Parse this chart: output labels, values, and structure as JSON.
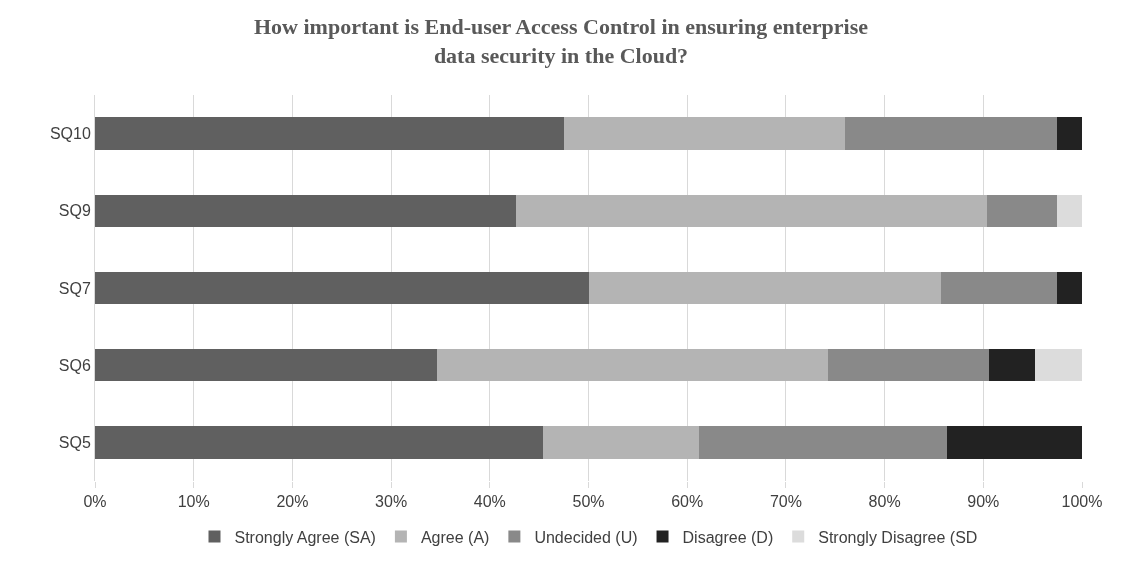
{
  "chart_data": {
    "type": "bar",
    "orientation": "horizontal",
    "stacked": true,
    "title": "How important is End-user Access Control in ensuring enterprise data security in the Cloud?",
    "categories": [
      "SQ10",
      "SQ9",
      "SQ7",
      "SQ6",
      "SQ5"
    ],
    "series": [
      {
        "name": "Strongly Agree (SA)",
        "color": "#606060",
        "values": [
          47.5,
          42.7,
          50,
          34.7,
          45.4
        ]
      },
      {
        "name": "Agree (A)",
        "color": "#b4b4b4",
        "values": [
          28.5,
          47.7,
          35.7,
          39.6,
          15.8
        ]
      },
      {
        "name": "Undecided (U)",
        "color": "#898989",
        "values": [
          21.5,
          7.1,
          11.8,
          16.3,
          25.1
        ]
      },
      {
        "name": "Disagree (D)",
        "color": "#222222",
        "values": [
          2.5,
          0,
          2.5,
          4.6,
          13.7
        ]
      },
      {
        "name": "Strongly Disagree (SD",
        "color": "#dcdcdc",
        "values": [
          0,
          2.5,
          0,
          4.8,
          0
        ]
      }
    ],
    "xlim": [
      0,
      100
    ],
    "xticks": [
      {
        "value": 0,
        "label": "0%"
      },
      {
        "value": 10,
        "label": "10%"
      },
      {
        "value": 20,
        "label": "20%"
      },
      {
        "value": 30,
        "label": "30%"
      },
      {
        "value": 40,
        "label": "40%"
      },
      {
        "value": 50,
        "label": "50%"
      },
      {
        "value": 60,
        "label": "60%"
      },
      {
        "value": 70,
        "label": "70%"
      },
      {
        "value": 80,
        "label": "80%"
      },
      {
        "value": 90,
        "label": "90%"
      },
      {
        "value": 100,
        "label": "100%"
      }
    ],
    "grid": "x",
    "legend": "bottom"
  }
}
